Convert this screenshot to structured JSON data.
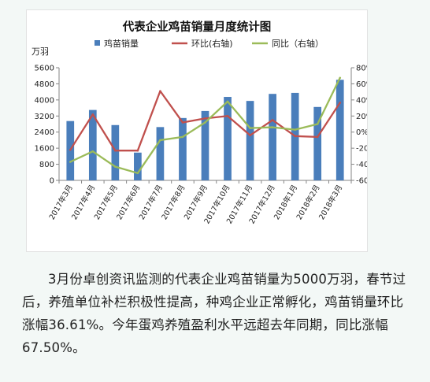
{
  "chart_data": {
    "type": "bar",
    "title": "代表企业鸡苗销量月度统计图",
    "ylabel": "万羽",
    "ylim": [
      0,
      5600
    ],
    "y_ticks": [
      0,
      800,
      1600,
      2400,
      3200,
      4000,
      4800,
      5600
    ],
    "y2lim": [
      -60,
      80
    ],
    "y2_ticks": [
      "80%",
      "60%",
      "40%",
      "20%",
      "0%",
      "-20%",
      "-40%",
      "-60%"
    ],
    "y2_values": [
      80,
      60,
      40,
      20,
      0,
      -20,
      -40,
      -60
    ],
    "categories": [
      "2017年3月",
      "2017年4月",
      "2017年5月",
      "2017年6月",
      "2017年7月",
      "2017年8月",
      "2017年9月",
      "2017年10月",
      "2017年11月",
      "2017年12月",
      "2018年1月",
      "2018年2月",
      "2018年3月"
    ],
    "legend_position": "top",
    "grid": false,
    "series": [
      {
        "name": "鸡苗销量",
        "type": "bar",
        "axis": "left",
        "color": "#4a7ebb",
        "values": [
          2950,
          3500,
          2750,
          1380,
          2650,
          3100,
          3450,
          4150,
          3950,
          4300,
          4350,
          3650,
          5000
        ]
      },
      {
        "name": "环比(右轴)",
        "type": "line",
        "axis": "right",
        "color": "#c0504d",
        "values": [
          -22,
          22,
          -23,
          -23,
          51,
          12,
          17,
          20,
          -4,
          15,
          -5,
          -6,
          36.61
        ]
      },
      {
        "name": "同比（右轴）",
        "type": "line",
        "axis": "right",
        "color": "#9bbb59",
        "values": [
          -37,
          -24,
          -43,
          -51,
          -10,
          -6,
          12,
          38,
          5,
          6,
          3,
          10,
          67.5
        ]
      }
    ]
  },
  "caption": "3月份卓创资讯监测的代表企业鸡苗销量为5000万羽，春节过后，养殖单位补栏积极性提高，种鸡企业正常孵化，鸡苗销量环比涨幅36.61%。今年蛋鸡养殖盈利水平远超去年同期，同比涨幅67.50%。",
  "colors": {
    "background": "#f3f8f6",
    "card": "#ffffff",
    "axis": "#868686"
  }
}
